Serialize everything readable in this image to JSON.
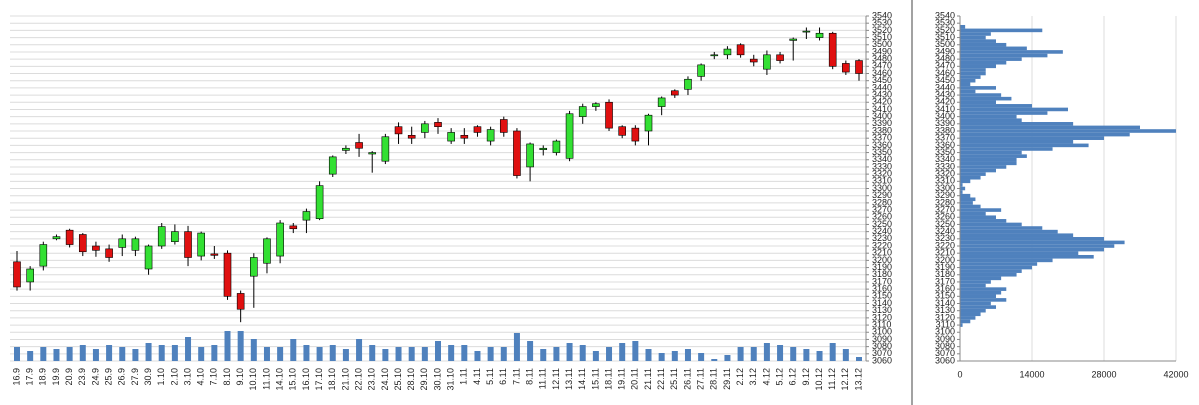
{
  "chart_data": [
    {
      "type": "candlestick",
      "categories": [
        "16.9",
        "17.9",
        "18.9",
        "19.9",
        "20.9",
        "23.9",
        "24.9",
        "25.9",
        "26.9",
        "27.9",
        "30.9",
        "1.10",
        "2.10",
        "3.10",
        "4.10",
        "7.10",
        "8.10",
        "9.10",
        "10.10",
        "11.10",
        "14.10",
        "15.10",
        "16.10",
        "17.10",
        "18.10",
        "21.10",
        "22.10",
        "23.10",
        "24.10",
        "25.10",
        "28.10",
        "29.10",
        "30.10",
        "31.10",
        "1.11",
        "4.11",
        "5.11",
        "6.11",
        "7.11",
        "8.11",
        "11.11",
        "12.11",
        "13.11",
        "14.11",
        "15.11",
        "18.11",
        "19.11",
        "20.11",
        "21.11",
        "22.11",
        "25.11",
        "26.11",
        "27.11",
        "28.11",
        "29.11",
        "2.12",
        "3.12",
        "4.12",
        "5.12",
        "6.12",
        "9.12",
        "10.12",
        "11.12",
        "12.12",
        "13.12"
      ],
      "open": [
        3198,
        3170,
        3192,
        3230,
        3242,
        3236,
        3220,
        3216,
        3218,
        3214,
        3188,
        3220,
        3226,
        3240,
        3206,
        3209,
        3210,
        3154,
        3178,
        3196,
        3206,
        3248,
        3256,
        3258,
        3320,
        3353,
        3364,
        3348,
        3338,
        3386,
        3374,
        3378,
        3392,
        3366,
        3374,
        3386,
        3366,
        3396,
        3380,
        3330,
        3354,
        3350,
        3342,
        3400,
        3414,
        3420,
        3386,
        3384,
        3380,
        3414,
        3436,
        3438,
        3456,
        3485,
        3486,
        3500,
        3480,
        3466,
        3486,
        3506,
        3518,
        3510,
        3516,
        3474,
        3478
      ],
      "high": [
        3213,
        3192,
        3226,
        3236,
        3244,
        3238,
        3226,
        3222,
        3236,
        3233,
        3222,
        3252,
        3250,
        3248,
        3240,
        3220,
        3214,
        3158,
        3210,
        3232,
        3256,
        3252,
        3272,
        3310,
        3346,
        3360,
        3376,
        3352,
        3376,
        3392,
        3386,
        3394,
        3398,
        3384,
        3384,
        3388,
        3386,
        3400,
        3384,
        3364,
        3360,
        3368,
        3408,
        3418,
        3420,
        3424,
        3388,
        3388,
        3404,
        3428,
        3438,
        3456,
        3474,
        3490,
        3498,
        3502,
        3486,
        3492,
        3490,
        3510,
        3524,
        3524,
        3518,
        3478,
        3480
      ],
      "low": [
        3158,
        3158,
        3186,
        3228,
        3218,
        3206,
        3205,
        3198,
        3206,
        3206,
        3180,
        3216,
        3222,
        3192,
        3200,
        3202,
        3145,
        3114,
        3134,
        3182,
        3196,
        3238,
        3238,
        3256,
        3316,
        3348,
        3344,
        3322,
        3334,
        3362,
        3362,
        3370,
        3376,
        3362,
        3362,
        3372,
        3360,
        3372,
        3314,
        3310,
        3346,
        3346,
        3338,
        3390,
        3408,
        3380,
        3370,
        3360,
        3360,
        3402,
        3426,
        3430,
        3450,
        3480,
        3480,
        3482,
        3470,
        3458,
        3474,
        3478,
        3508,
        3506,
        3466,
        3458,
        3450
      ],
      "close": [
        3163,
        3188,
        3222,
        3233,
        3222,
        3212,
        3214,
        3204,
        3230,
        3230,
        3220,
        3247,
        3240,
        3204,
        3238,
        3207,
        3150,
        3132,
        3204,
        3230,
        3252,
        3244,
        3268,
        3304,
        3344,
        3356,
        3356,
        3350,
        3372,
        3376,
        3370,
        3390,
        3386,
        3378,
        3370,
        3378,
        3382,
        3378,
        3318,
        3362,
        3356,
        3366,
        3404,
        3414,
        3418,
        3384,
        3374,
        3366,
        3402,
        3426,
        3430,
        3452,
        3472,
        3486,
        3494,
        3486,
        3476,
        3486,
        3478,
        3508,
        3519,
        3516,
        3470,
        3462,
        3460
      ],
      "volume": [
        14,
        10,
        14,
        12,
        14,
        16,
        12,
        16,
        14,
        12,
        18,
        16,
        16,
        24,
        14,
        16,
        30,
        30,
        22,
        14,
        14,
        22,
        16,
        14,
        16,
        12,
        22,
        16,
        12,
        14,
        14,
        14,
        20,
        16,
        16,
        10,
        14,
        14,
        28,
        20,
        12,
        14,
        18,
        16,
        10,
        14,
        18,
        20,
        12,
        8,
        10,
        12,
        8,
        2,
        6,
        14,
        14,
        18,
        16,
        14,
        12,
        10,
        18,
        12,
        4
      ],
      "volume_lim": [
        0,
        100
      ],
      "up_color": "#33e033",
      "down_color": "#e01010",
      "volume_color": "#4f81bd",
      "ylim": [
        3060,
        3540
      ],
      "yticks": [
        3540,
        3530,
        3520,
        3510,
        3500,
        3490,
        3480,
        3470,
        3460,
        3450,
        3440,
        3430,
        3420,
        3410,
        3400,
        3390,
        3380,
        3370,
        3360,
        3350,
        3340,
        3330,
        3320,
        3310,
        3300,
        3290,
        3280,
        3270,
        3260,
        3250,
        3240,
        3230,
        3220,
        3210,
        3200,
        3190,
        3180,
        3170,
        3160,
        3150,
        3140,
        3130,
        3120,
        3110,
        3100,
        3090,
        3080,
        3070,
        3060
      ],
      "grid": true
    },
    {
      "type": "profile",
      "levels": [
        3525,
        3520,
        3515,
        3510,
        3505,
        3500,
        3495,
        3490,
        3485,
        3480,
        3475,
        3470,
        3465,
        3460,
        3455,
        3450,
        3445,
        3440,
        3435,
        3430,
        3425,
        3420,
        3415,
        3410,
        3405,
        3400,
        3395,
        3390,
        3385,
        3380,
        3375,
        3370,
        3365,
        3360,
        3355,
        3350,
        3345,
        3340,
        3335,
        3330,
        3325,
        3320,
        3315,
        3310,
        3305,
        3300,
        3295,
        3290,
        3285,
        3280,
        3275,
        3270,
        3265,
        3260,
        3255,
        3250,
        3245,
        3240,
        3235,
        3230,
        3225,
        3220,
        3215,
        3210,
        3205,
        3200,
        3195,
        3190,
        3185,
        3180,
        3175,
        3170,
        3165,
        3160,
        3155,
        3150,
        3145,
        3140,
        3135,
        3130,
        3125,
        3120,
        3115,
        3110
      ],
      "values": [
        1000,
        16000,
        6000,
        5000,
        7000,
        9000,
        13000,
        20000,
        17000,
        12000,
        9000,
        7000,
        5000,
        5000,
        4000,
        3000,
        2000,
        7000,
        3000,
        8000,
        10000,
        7000,
        14000,
        21000,
        17000,
        11000,
        12000,
        22000,
        35000,
        42000,
        33000,
        28000,
        22000,
        25000,
        18000,
        12000,
        13000,
        11000,
        11000,
        9000,
        7000,
        5000,
        4000,
        2000,
        500,
        1000,
        500,
        2000,
        3000,
        2500,
        4000,
        8000,
        5000,
        7000,
        9000,
        12000,
        16000,
        19000,
        22000,
        28000,
        32000,
        30000,
        28000,
        23000,
        26000,
        18000,
        15000,
        14000,
        12000,
        11000,
        8000,
        6000,
        5000,
        9000,
        8000,
        7000,
        9000,
        6000,
        7000,
        5000,
        4000,
        3000,
        2000,
        500
      ],
      "color": "#4f81bd",
      "xlim": [
        0,
        42000
      ],
      "xticks": [
        0,
        14000,
        28000,
        42000
      ],
      "ylim": [
        3060,
        3540
      ],
      "yticks": [
        3540,
        3530,
        3520,
        3510,
        3500,
        3490,
        3480,
        3470,
        3460,
        3450,
        3440,
        3430,
        3420,
        3410,
        3400,
        3390,
        3380,
        3370,
        3360,
        3350,
        3340,
        3330,
        3320,
        3310,
        3300,
        3290,
        3280,
        3270,
        3260,
        3250,
        3240,
        3230,
        3220,
        3210,
        3200,
        3190,
        3180,
        3170,
        3160,
        3150,
        3140,
        3130,
        3120,
        3110,
        3100,
        3090,
        3080,
        3070,
        3060
      ],
      "grid": true
    }
  ]
}
